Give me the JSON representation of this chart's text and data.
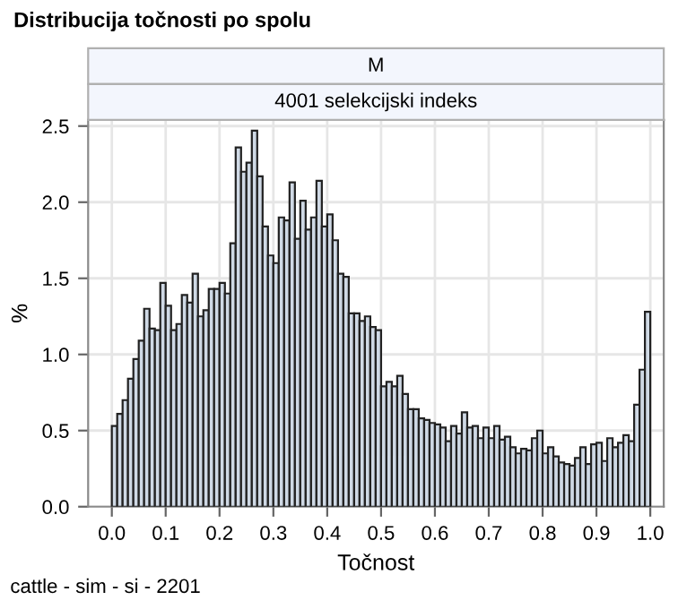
{
  "chart_data": {
    "type": "histogram",
    "title": "Distribucija točnosti po spolu",
    "subtitle": "M",
    "annotations": [
      "4001 selekcijski indeks",
      "cattle - sim - si - 2201"
    ],
    "xlabel": "Točnost",
    "ylabel": "%",
    "bins": [
      0.0,
      0.01,
      0.02,
      0.03,
      0.04,
      0.05,
      0.06,
      0.07,
      0.08,
      0.09,
      0.1,
      0.11,
      0.12,
      0.13,
      0.14,
      0.15,
      0.16,
      0.17,
      0.18,
      0.19,
      0.2,
      0.21,
      0.22,
      0.23,
      0.24,
      0.25,
      0.26,
      0.27,
      0.28,
      0.29,
      0.3,
      0.31,
      0.32,
      0.33,
      0.34,
      0.35,
      0.36,
      0.37,
      0.38,
      0.39,
      0.4,
      0.41,
      0.42,
      0.43,
      0.44,
      0.45,
      0.46,
      0.47,
      0.48,
      0.49,
      0.5,
      0.51,
      0.52,
      0.53,
      0.54,
      0.55,
      0.56,
      0.57,
      0.58,
      0.59,
      0.6,
      0.61,
      0.62,
      0.63,
      0.64,
      0.65,
      0.66,
      0.67,
      0.68,
      0.69,
      0.7,
      0.71,
      0.72,
      0.73,
      0.74,
      0.75,
      0.76,
      0.77,
      0.78,
      0.79,
      0.8,
      0.81,
      0.82,
      0.83,
      0.84,
      0.85,
      0.86,
      0.87,
      0.88,
      0.89,
      0.9,
      0.91,
      0.92,
      0.93,
      0.94,
      0.95,
      0.96,
      0.97,
      0.98,
      0.99,
      1.0
    ],
    "values": [
      0.53,
      0.61,
      0.7,
      0.84,
      0.97,
      1.09,
      1.3,
      1.17,
      1.16,
      1.47,
      1.32,
      1.16,
      1.2,
      1.39,
      1.34,
      1.53,
      1.25,
      1.29,
      1.43,
      1.43,
      1.47,
      1.4,
      1.73,
      2.36,
      2.2,
      2.26,
      2.47,
      2.17,
      1.84,
      1.65,
      1.6,
      1.9,
      1.88,
      2.13,
      1.76,
      2.01,
      1.82,
      1.9,
      2.14,
      1.84,
      1.92,
      1.75,
      1.53,
      1.51,
      1.27,
      1.27,
      1.22,
      1.25,
      1.18,
      1.16,
      0.79,
      0.82,
      0.79,
      0.86,
      0.74,
      0.64,
      0.64,
      0.58,
      0.57,
      0.55,
      0.54,
      0.52,
      0.43,
      0.53,
      0.48,
      0.62,
      0.52,
      0.53,
      0.45,
      0.52,
      0.45,
      0.53,
      0.44,
      0.46,
      0.39,
      0.35,
      0.38,
      0.37,
      0.45,
      0.5,
      0.35,
      0.39,
      0.33,
      0.29,
      0.28,
      0.27,
      0.32,
      0.39,
      0.28,
      0.41,
      0.42,
      0.3,
      0.45,
      0.39,
      0.42,
      0.47,
      0.43,
      0.67,
      0.9,
      1.28
    ],
    "color": "#cfd9e5",
    "xlim": [
      -0.044,
      1.025
    ],
    "ylim": [
      0,
      2.54
    ],
    "xticks": [
      {
        "value": 0,
        "label": "0.0"
      },
      0.1,
      0.2,
      0.3,
      0.4,
      0.5,
      0.6,
      0.7,
      0.8,
      0.9,
      {
        "value": 1,
        "label": "1.0"
      }
    ],
    "yticks": [
      {
        "value": 0,
        "label": "0.0"
      },
      0.5,
      {
        "value": 1,
        "label": "1.0"
      },
      1.5,
      {
        "value": 2,
        "label": "2.0"
      },
      2.5
    ],
    "grid": true
  }
}
